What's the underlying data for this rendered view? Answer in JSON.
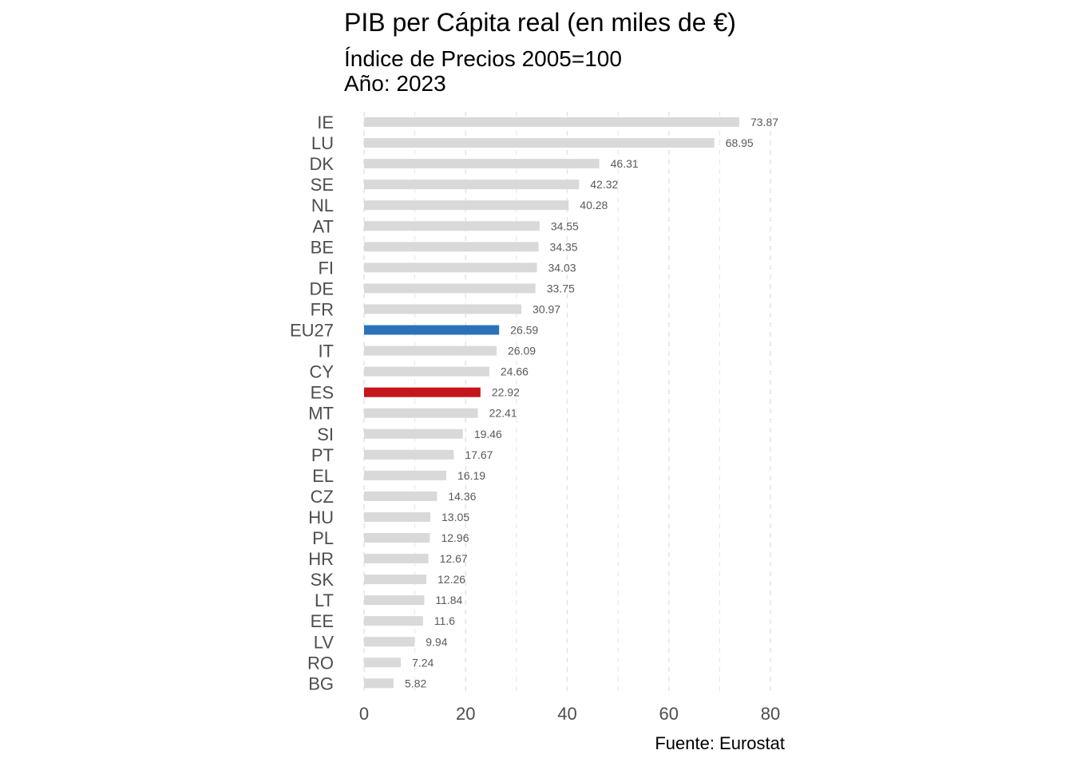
{
  "chart_data": {
    "type": "bar",
    "orientation": "horizontal",
    "title": "PIB per Cápita real (en miles de €)",
    "subtitle_lines": [
      "Índice de Precios 2005=100",
      "Año: 2023"
    ],
    "caption": "Fuente: Eurostat",
    "xlabel": "",
    "ylabel": "",
    "xlim": [
      0,
      80
    ],
    "xticks": [
      0,
      20,
      40,
      60,
      80
    ],
    "grid": "vertical dashed",
    "categories": [
      "IE",
      "LU",
      "DK",
      "SE",
      "NL",
      "AT",
      "BE",
      "FI",
      "DE",
      "FR",
      "EU27",
      "IT",
      "CY",
      "ES",
      "MT",
      "SI",
      "PT",
      "EL",
      "CZ",
      "HU",
      "PL",
      "HR",
      "SK",
      "LT",
      "EE",
      "LV",
      "RO",
      "BG"
    ],
    "values": [
      73.87,
      68.95,
      46.31,
      42.32,
      40.28,
      34.55,
      34.35,
      34.03,
      33.75,
      30.97,
      26.59,
      26.09,
      24.66,
      22.92,
      22.41,
      19.46,
      17.67,
      16.19,
      14.36,
      13.05,
      12.96,
      12.67,
      12.26,
      11.84,
      11.6,
      9.94,
      7.24,
      5.82
    ],
    "value_labels": [
      "73.87",
      "68.95",
      "46.31",
      "42.32",
      "40.28",
      "34.55",
      "34.35",
      "34.03",
      "33.75",
      "30.97",
      "26.59",
      "26.09",
      "24.66",
      "22.92",
      "22.41",
      "19.46",
      "17.67",
      "16.19",
      "14.36",
      "13.05",
      "12.96",
      "12.67",
      "12.26",
      "11.84",
      "11.6",
      "9.94",
      "7.24",
      "5.82"
    ],
    "colors": {
      "default": "#d9d9d9",
      "highlight": {
        "EU27": "#2b73b8",
        "ES": "#c4161c"
      },
      "grid": "#e5e5e5",
      "tick_text": "#4d4d4d",
      "value_text": "#595959"
    }
  }
}
